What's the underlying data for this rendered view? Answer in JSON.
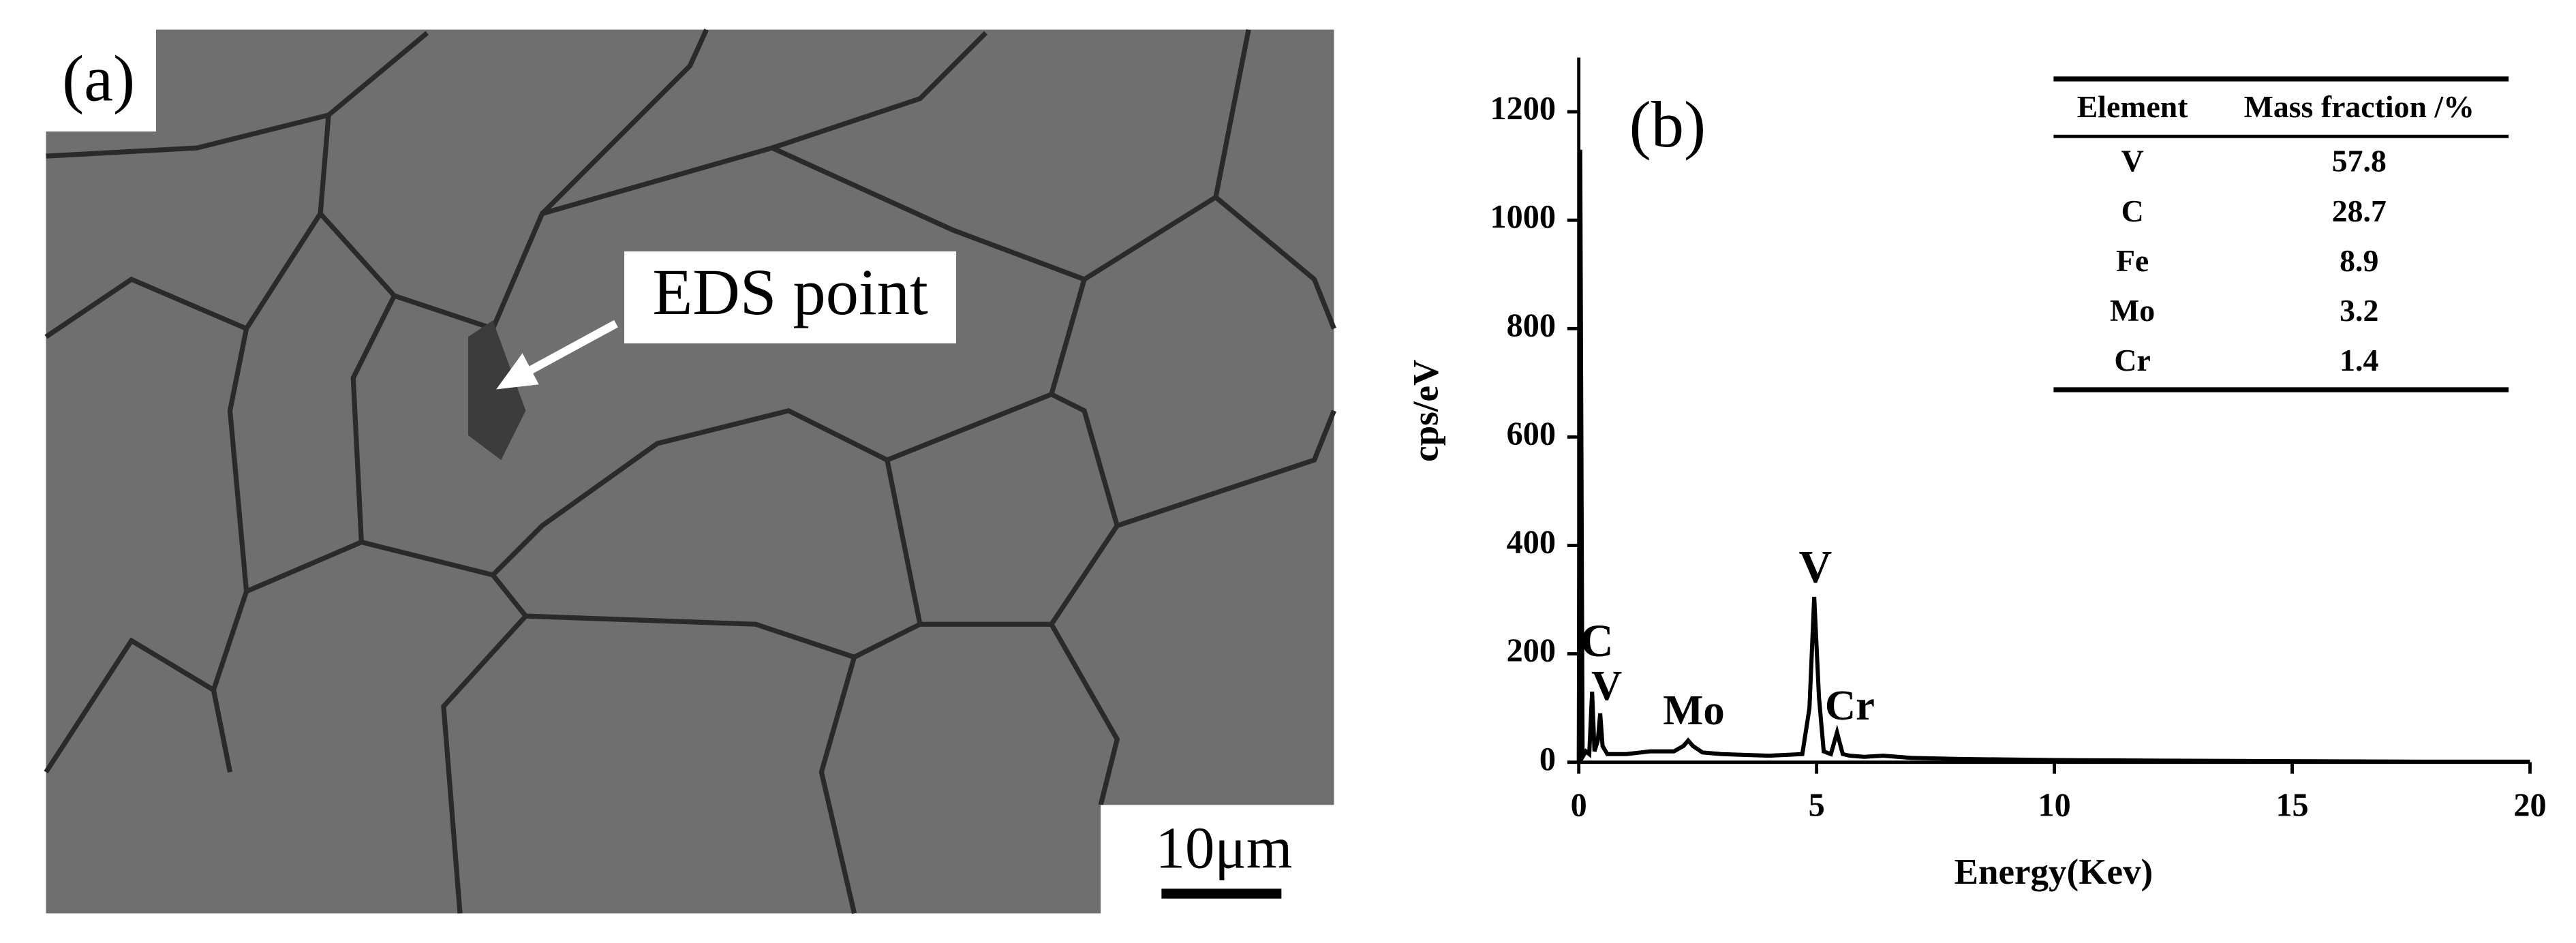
{
  "panel_a": {
    "label": "(a)",
    "annotation": "EDS point",
    "scale_bar": "10μm"
  },
  "chart_data": {
    "type": "line",
    "panel_label": "(b)",
    "x_label": "Energy(Kev)",
    "y_label": "cps/eV",
    "xlim": [
      0,
      20
    ],
    "xticks": [
      0,
      5,
      10,
      15,
      20
    ],
    "ylim": [
      0,
      1300
    ],
    "yticks": [
      0,
      200,
      400,
      600,
      800,
      1000,
      1200
    ],
    "x": [
      0,
      0.03,
      0.08,
      0.15,
      0.22,
      0.28,
      0.33,
      0.4,
      0.45,
      0.5,
      0.6,
      1.0,
      1.5,
      2.0,
      2.2,
      2.3,
      2.4,
      2.6,
      3.0,
      4.0,
      4.7,
      4.85,
      4.95,
      5.05,
      5.15,
      5.3,
      5.43,
      5.55,
      5.7,
      6.0,
      6.4,
      7,
      8,
      10,
      12,
      15,
      18,
      20
    ],
    "series": [
      {
        "color": "#000000",
        "values": [
          0,
          1130,
          10,
          20,
          15,
          130,
          20,
          40,
          90,
          30,
          15,
          15,
          20,
          20,
          30,
          40,
          30,
          18,
          15,
          12,
          15,
          100,
          305,
          120,
          20,
          15,
          55,
          15,
          12,
          10,
          12,
          8,
          6,
          4,
          3,
          2,
          1,
          1
        ]
      }
    ],
    "annotations": [
      "C",
      "V",
      "Mo",
      "V",
      "Cr"
    ],
    "table": {
      "columns": [
        "Element",
        "Mass fraction /%"
      ],
      "rows": [
        [
          "V",
          57.8
        ],
        [
          "C",
          28.7
        ],
        [
          "Fe",
          8.9
        ],
        [
          "Mo",
          3.2
        ],
        [
          "Cr",
          1.4
        ]
      ]
    }
  }
}
